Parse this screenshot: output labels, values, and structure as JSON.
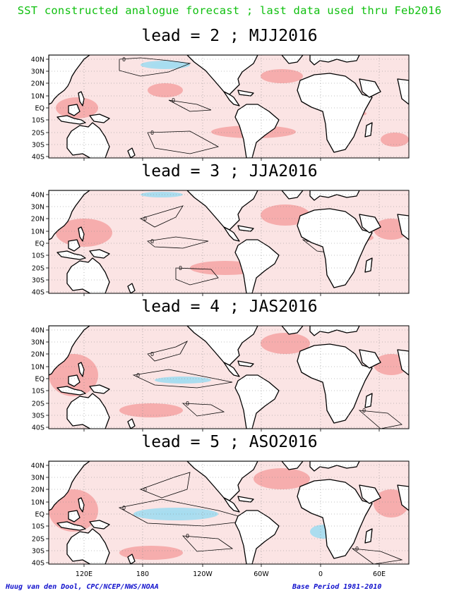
{
  "header": {
    "title": "SST constructed analogue forecast ; last data used thru Feb2016"
  },
  "lat_labels": [
    "40N",
    "30N",
    "20N",
    "10N",
    "EQ",
    "10S",
    "20S",
    "30S",
    "40S"
  ],
  "lon_labels": [
    "120E",
    "180",
    "120W",
    "60W",
    "0",
    "60E"
  ],
  "contour_label": "0",
  "panels": [
    {
      "title": "lead = 2 ; MJJ2016"
    },
    {
      "title": "lead = 3 ; JJA2016"
    },
    {
      "title": "lead = 4 ; JAS2016"
    },
    {
      "title": "lead = 5 ; ASO2016"
    }
  ],
  "footer": {
    "left": "Huug van den Dool, CPC/NCEP/NWS/NOAA",
    "right": "Base Period 1981-2010"
  },
  "colors": {
    "title": "#10c010",
    "footer": "#1010cc",
    "warm": "#f4a3a3",
    "cool": "#a6dcef"
  }
}
